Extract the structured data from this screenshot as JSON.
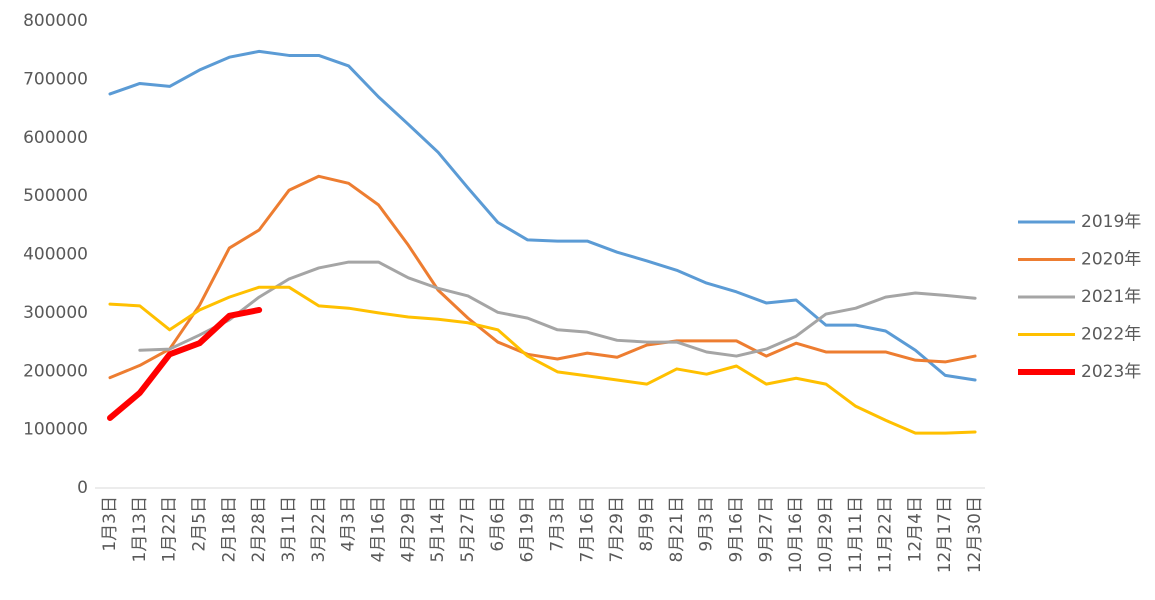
{
  "chart_data": {
    "type": "line",
    "categories": [
      "1月3日",
      "1月13日",
      "1月22日",
      "2月5日",
      "2月18日",
      "2月28日",
      "3月11日",
      "3月22日",
      "4月3日",
      "4月16日",
      "4月29日",
      "5月14日",
      "5月27日",
      "6月6日",
      "6月19日",
      "7月3日",
      "7月16日",
      "7月29日",
      "8月9日",
      "8月21日",
      "9月3日",
      "9月16日",
      "9月27日",
      "10月16日",
      "10月29日",
      "11月11日",
      "11月22日",
      "12月4日",
      "12月17日",
      "12月30日"
    ],
    "series": [
      {
        "name": "2019年",
        "color": "#5b9bd5",
        "values": [
          675000,
          693000,
          688000,
          716000,
          738000,
          748000,
          741000,
          741000,
          723000,
          670000,
          623000,
          575000,
          514000,
          455000,
          425000,
          423000,
          423000,
          404000,
          389000,
          373000,
          351000,
          336000,
          317000,
          322000,
          279000,
          279000,
          269000,
          236000,
          193000,
          185000
        ]
      },
      {
        "name": "2020年",
        "color": "#ed7d31",
        "values": [
          189000,
          210000,
          238000,
          313000,
          411000,
          442000,
          510000,
          534000,
          522000,
          485000,
          416000,
          339000,
          291000,
          250000,
          229000,
          221000,
          231000,
          224000,
          245000,
          252000,
          252000,
          252000,
          226000,
          248000,
          233000,
          233000,
          233000,
          219000,
          216000,
          226000
        ]
      },
      {
        "name": "2021年",
        "color": "#a5a5a5",
        "values": [
          null,
          236000,
          238000,
          262000,
          288000,
          327000,
          358000,
          377000,
          387000,
          387000,
          360000,
          342000,
          329000,
          301000,
          291000,
          271000,
          267000,
          253000,
          250000,
          250000,
          233000,
          226000,
          238000,
          260000,
          298000,
          308000,
          327000,
          334000,
          330000,
          325000
        ]
      },
      {
        "name": "2022年",
        "color": "#ffc000",
        "values": [
          315000,
          312000,
          271000,
          305000,
          327000,
          344000,
          344000,
          312000,
          308000,
          300000,
          293000,
          289000,
          283000,
          271000,
          226000,
          199000,
          192000,
          185000,
          178000,
          204000,
          195000,
          209000,
          178000,
          188000,
          178000,
          140000,
          116000,
          94000,
          94000,
          96000
        ]
      },
      {
        "name": "2023年",
        "color": "#ff0000",
        "values": [
          120000,
          163000,
          229000,
          248000,
          295000,
          305000,
          null,
          null,
          null,
          null,
          null,
          null,
          null,
          null,
          null,
          null,
          null,
          null,
          null,
          null,
          null,
          null,
          null,
          null,
          null,
          null,
          null,
          null,
          null,
          null
        ]
      }
    ],
    "ylim": [
      0,
      800000
    ],
    "yticks": [
      0,
      100000,
      200000,
      300000,
      400000,
      500000,
      600000,
      700000,
      800000
    ],
    "legend": "right"
  }
}
